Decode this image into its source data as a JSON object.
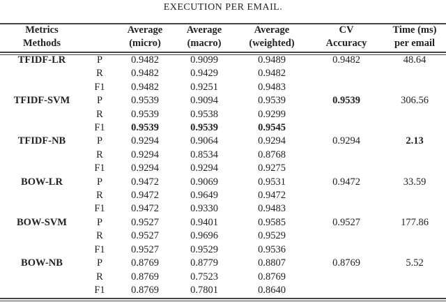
{
  "caption": "EXECUTION PER EMAIL.",
  "header": {
    "col1": [
      "Metrics",
      "Methods"
    ],
    "micro": [
      "Average",
      "(micro)"
    ],
    "macro": [
      "Average",
      "(macro)"
    ],
    "weighted": [
      "Average",
      "(weighted)"
    ],
    "cv": [
      "CV",
      "Accuracy"
    ],
    "time": [
      "Time (ms)",
      "per email"
    ]
  },
  "rows": [
    {
      "method": "TFIDF-LR",
      "metric": "P",
      "micro": "0.9482",
      "macro": "0.9099",
      "weighted": "0.9489",
      "cv": "0.9482",
      "time": "48.64"
    },
    {
      "method": "",
      "metric": "R",
      "micro": "0.9482",
      "macro": "0.9429",
      "weighted": "0.9482",
      "cv": "",
      "time": ""
    },
    {
      "method": "",
      "metric": "F1",
      "micro": "0.9482",
      "macro": "0.9251",
      "weighted": "0.9483",
      "cv": "",
      "time": ""
    },
    {
      "method": "TFIDF-SVM",
      "metric": "P",
      "micro": "0.9539",
      "macro": "0.9094",
      "weighted": "0.9539",
      "cv": "0.9539",
      "time": "306.56",
      "bold": [
        "cv"
      ]
    },
    {
      "method": "",
      "metric": "R",
      "micro": "0.9539",
      "macro": "0.9538",
      "weighted": "0.9299",
      "cv": "",
      "time": ""
    },
    {
      "method": "",
      "metric": "F1",
      "micro": "0.9539",
      "macro": "0.9539",
      "weighted": "0.9545",
      "cv": "",
      "time": "",
      "bold": [
        "micro",
        "macro",
        "weighted"
      ]
    },
    {
      "method": "TFIDF-NB",
      "metric": "P",
      "micro": "0.9294",
      "macro": "0.9064",
      "weighted": "0.9294",
      "cv": "0.9294",
      "time": "2.13",
      "bold": [
        "time"
      ]
    },
    {
      "method": "",
      "metric": "R",
      "micro": "0.9294",
      "macro": "0.8534",
      "weighted": "0.8768",
      "cv": "",
      "time": ""
    },
    {
      "method": "",
      "metric": "F1",
      "micro": "0.9294",
      "macro": "0.9294",
      "weighted": "0.9275",
      "cv": "",
      "time": ""
    },
    {
      "method": "BOW-LR",
      "metric": "P",
      "micro": "0.9472",
      "macro": "0.9069",
      "weighted": "0.9531",
      "cv": "0.9472",
      "time": "33.59"
    },
    {
      "method": "",
      "metric": "R",
      "micro": "0.9472",
      "macro": "0.9649",
      "weighted": "0.9472",
      "cv": "",
      "time": ""
    },
    {
      "method": "",
      "metric": "F1",
      "micro": "0.9472",
      "macro": "0.9330",
      "weighted": "0.9483",
      "cv": "",
      "time": ""
    },
    {
      "method": "BOW-SVM",
      "metric": "P",
      "micro": "0.9527",
      "macro": "0.9401",
      "weighted": "0.9585",
      "cv": "0.9527",
      "time": "177.86"
    },
    {
      "method": "",
      "metric": "R",
      "micro": "0.9527",
      "macro": "0.9696",
      "weighted": "0.9529",
      "cv": "",
      "time": ""
    },
    {
      "method": "",
      "metric": "F1",
      "micro": "0.9527",
      "macro": "0.9529",
      "weighted": "0.9536",
      "cv": "",
      "time": ""
    },
    {
      "method": "BOW-NB",
      "metric": "P",
      "micro": "0.8769",
      "macro": "0.8779",
      "weighted": "0.8807",
      "cv": "0.8769",
      "time": "5.52"
    },
    {
      "method": "",
      "metric": "R",
      "micro": "0.8769",
      "macro": "0.7523",
      "weighted": "0.8769",
      "cv": "",
      "time": ""
    },
    {
      "method": "",
      "metric": "F1",
      "micro": "0.8769",
      "macro": "0.7801",
      "weighted": "0.8640",
      "cv": "",
      "time": ""
    }
  ]
}
